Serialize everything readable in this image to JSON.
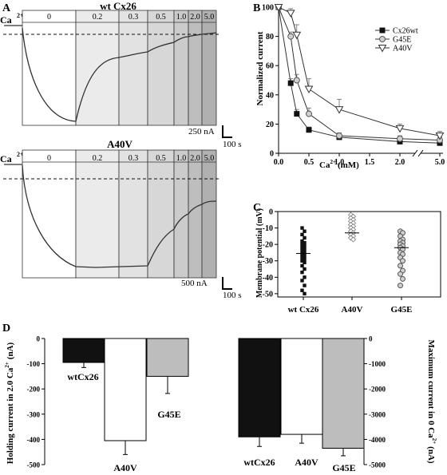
{
  "panel_labels": {
    "A": "A",
    "B": "B",
    "C": "C",
    "D": "D"
  },
  "panel_a": {
    "traces": [
      {
        "title": "wt Cx26",
        "ca_label": "Ca",
        "ca_sup": "2+",
        "segments": [
          "0",
          "0.2",
          "0.3",
          "0.5",
          "1.0",
          "2.0",
          "5.0"
        ],
        "scale_current": "250 nA",
        "scale_time": "100 s",
        "segment_fills": [
          "#ffffff",
          "#ebebeb",
          "#e2e2e2",
          "#d7d7d7",
          "#cbcbcb",
          "#bebebe",
          "#b0b0b0"
        ]
      },
      {
        "title": "A40V",
        "ca_label": "Ca",
        "ca_sup": "2+",
        "segments": [
          "0",
          "0.2",
          "0.3",
          "0.5",
          "1.0",
          "2.0",
          "5.0"
        ],
        "scale_current": "500 nA",
        "scale_time": "100 s",
        "segment_fills": [
          "#ffffff",
          "#ebebeb",
          "#e2e2e2",
          "#d7d7d7",
          "#cbcbcb",
          "#bebebe",
          "#b0b0b0"
        ]
      }
    ]
  },
  "chart_data": [
    {
      "type": "line",
      "panel": "B",
      "ylabel": "Normalized current",
      "xlabel_main": "Ca",
      "xlabel_sup": "2+",
      "xlabel_unit": "(mM)",
      "x_ticks": [
        "0.0",
        "0.5",
        "1.0",
        "1.5",
        "2.0",
        "5.0"
      ],
      "y_ticks": [
        "0",
        "20",
        "40",
        "60",
        "80",
        "100"
      ],
      "ylim": [
        0,
        100
      ],
      "x_axis_break": "between 2.0 and 5.0",
      "legend_position": "top-right",
      "series": [
        {
          "name": "Cx26wt",
          "marker": "filled-square",
          "x": [
            0,
            0.2,
            0.3,
            0.5,
            1.0,
            2.0,
            5.0
          ],
          "y": [
            100,
            48,
            27,
            16,
            11,
            8,
            7
          ]
        },
        {
          "name": "G45E",
          "marker": "open-circle",
          "x": [
            0,
            0.2,
            0.3,
            0.5,
            1.0,
            2.0,
            5.0
          ],
          "y": [
            100,
            80,
            50,
            27,
            12,
            10,
            9
          ]
        },
        {
          "name": "A40V",
          "marker": "open-triangle",
          "x": [
            0,
            0.2,
            0.3,
            0.5,
            1.0,
            2.0,
            5.0
          ],
          "y": [
            100,
            96,
            81,
            44,
            30,
            17,
            12
          ]
        }
      ]
    },
    {
      "type": "scatter",
      "panel": "C",
      "ylabel": "Membrane potential (mV)",
      "y_ticks": [
        "0",
        "-10",
        "-20",
        "-30",
        "-40",
        "-50"
      ],
      "ylim": [
        -52,
        0
      ],
      "categories": [
        "wt Cx26",
        "A40V",
        "G45E"
      ],
      "groups": [
        {
          "name": "wt Cx26",
          "marker": "filled-square",
          "mean": -25.5,
          "values": [
            -10,
            -12,
            -14,
            -16,
            -18,
            -19,
            -20,
            -21,
            -22,
            -23,
            -24,
            -25,
            -26,
            -27,
            -28,
            -29,
            -30,
            -31,
            -33,
            -35,
            -37,
            -40,
            -42,
            -45,
            -48,
            -50
          ]
        },
        {
          "name": "A40V",
          "marker": "open-diamond",
          "mean": -13,
          "values": [
            -2,
            -3,
            -4,
            -5,
            -6,
            -7,
            -8,
            -9,
            -10,
            -11,
            -12,
            -13,
            -14,
            -15,
            -16,
            -17
          ]
        },
        {
          "name": "G45E",
          "marker": "open-circle",
          "mean": -22,
          "values": [
            -12,
            -13,
            -15,
            -17,
            -18,
            -19,
            -20,
            -21,
            -22,
            -23,
            -25,
            -26,
            -28,
            -30,
            -33,
            -36,
            -38,
            -41,
            -45
          ]
        }
      ]
    },
    {
      "type": "bar",
      "panel": "D-left",
      "ylabel": "Holding current in 2.0 Ca",
      "ylabel_sup": "2+",
      "ylabel_unit": "(nA)",
      "y_ticks": [
        "0",
        "-100",
        "-200",
        "-300",
        "-400",
        "-500"
      ],
      "ylim": [
        -500,
        0
      ],
      "categories": [
        "wtCx26",
        "A40V",
        "G45E"
      ],
      "values": [
        -95,
        -405,
        -150
      ],
      "errors": [
        20,
        55,
        68
      ],
      "colors": [
        "#111111",
        "#ffffff",
        "#bdbdbd"
      ]
    },
    {
      "type": "bar",
      "panel": "D-right",
      "ylabel": "Maximum current in 0 Ca",
      "ylabel_sup": "2+",
      "ylabel_unit": "(nA)",
      "y_ticks": [
        "0",
        "-1000",
        "-2000",
        "-3000",
        "-4000",
        "-5000"
      ],
      "ylim": [
        -5000,
        0
      ],
      "categories": [
        "wtCx26",
        "A40V",
        "G45E"
      ],
      "values": [
        -3900,
        -3800,
        -4350
      ],
      "errors": [
        380,
        350,
        300
      ],
      "colors": [
        "#111111",
        "#ffffff",
        "#bdbdbd"
      ]
    }
  ]
}
